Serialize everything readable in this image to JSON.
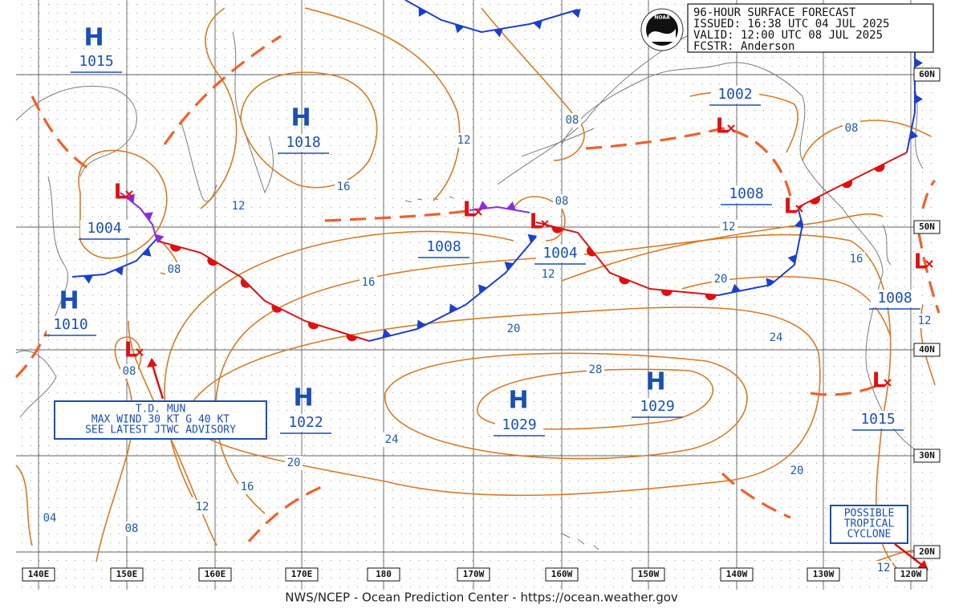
{
  "header": {
    "lines": [
      "96-HOUR SURFACE FORECAST",
      "ISSUED: 16:38 UTC 04 JUL 2025",
      "VALID:  12:00 UTC 08 JUL 2025",
      "FCSTR:  Anderson"
    ],
    "logo": "NOAA"
  },
  "pressure_centers": [
    {
      "letter": "H",
      "pressure": "1015"
    },
    {
      "letter": "H",
      "pressure": "1018"
    },
    {
      "letter": "H",
      "pressure": "1010"
    },
    {
      "letter": "H",
      "pressure": "1022"
    },
    {
      "letter": "H",
      "pressure": "1029"
    },
    {
      "letter": "H",
      "pressure": "1029"
    },
    {
      "letter": "L",
      "pressure": "1004"
    },
    {
      "letter": "L",
      "pressure": "1002"
    },
    {
      "letter": "L",
      "pressure": "1008"
    },
    {
      "letter": "L",
      "pressure": "1008"
    },
    {
      "letter": "L",
      "pressure": "1004"
    },
    {
      "letter": "L",
      "pressure": "1008"
    },
    {
      "letter": "L",
      "pressure": "1015"
    },
    {
      "letter": "L"
    }
  ],
  "isobar_labels": [
    "12",
    "16",
    "08",
    "12",
    "16",
    "08",
    "12",
    "20",
    "24",
    "28",
    "20",
    "24",
    "16",
    "12",
    "20",
    "16",
    "12",
    "08",
    "04",
    "08",
    "12",
    "08",
    "20",
    "08",
    "12",
    "16",
    "12"
  ],
  "latitude_labels": [
    "60N",
    "50N",
    "40N",
    "30N",
    "20N"
  ],
  "longitude_labels": [
    "140E",
    "150E",
    "160E",
    "170E",
    "180",
    "170W",
    "160W",
    "150W",
    "140W",
    "130W",
    "120W"
  ],
  "annotations": [
    {
      "lines": [
        "T.D. MUN",
        "MAX WIND 30 KT G 40 KT",
        "SEE LATEST JTWC ADVISORY"
      ]
    },
    {
      "lines": [
        "POSSIBLE",
        "TROPICAL",
        "CYCLONE"
      ]
    }
  ],
  "footer": "NWS/NCEP - Ocean Prediction Center - https://ocean.weather.gov"
}
